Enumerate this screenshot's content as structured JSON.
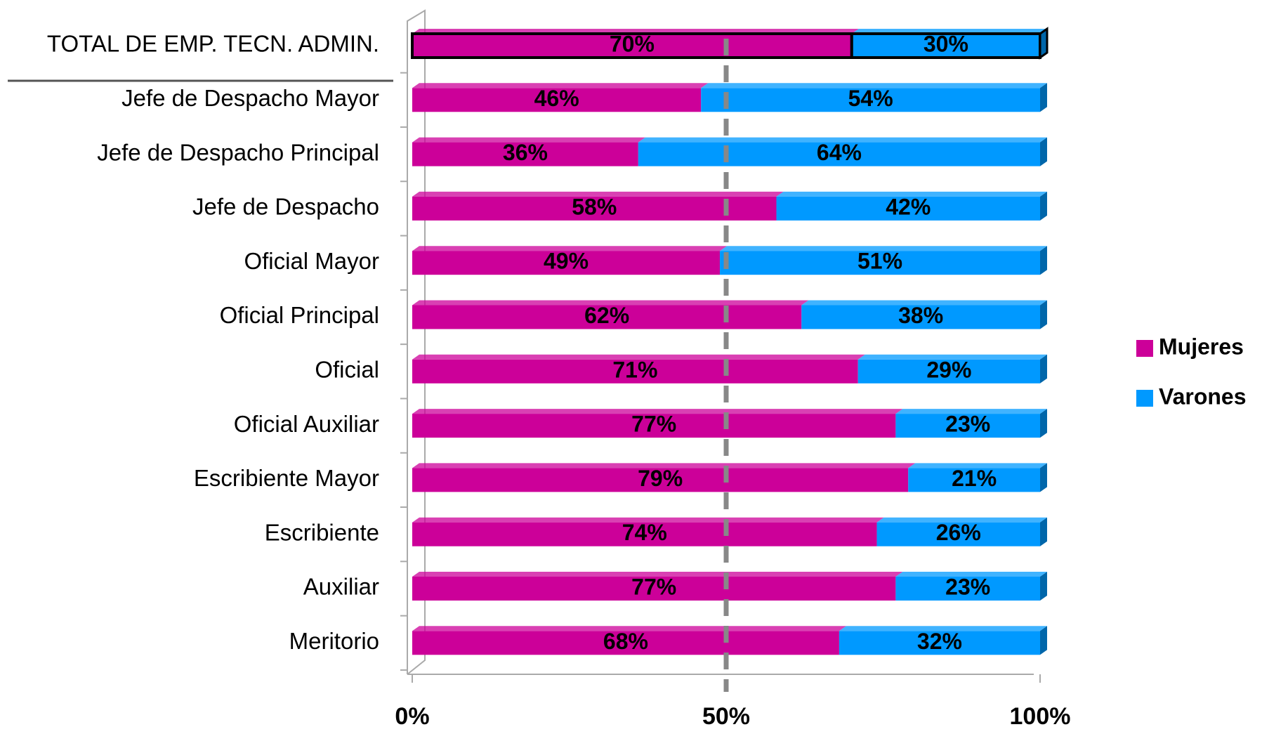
{
  "chart_data": {
    "type": "bar",
    "orientation": "horizontal",
    "stacked": "percent",
    "categories": [
      "TOTAL DE EMP. TECN. ADMIN.",
      "Jefe de Despacho Mayor",
      "Jefe de Despacho Principal",
      "Jefe de Despacho",
      "Oficial Mayor",
      "Oficial Principal",
      "Oficial",
      "Oficial Auxiliar",
      "Escribiente Mayor",
      "Escribiente",
      "Auxiliar",
      "Meritorio"
    ],
    "series": [
      {
        "name": "Mujeres",
        "color": "#cc0099",
        "values": [
          70,
          46,
          36,
          58,
          49,
          62,
          71,
          77,
          79,
          74,
          77,
          68
        ],
        "value_labels": [
          "70%",
          "46%",
          "36%",
          "58%",
          "49%",
          "62%",
          "71%",
          "77%",
          "79%",
          "74%",
          "77%",
          "68%"
        ]
      },
      {
        "name": "Varones",
        "color": "#0099ff",
        "values": [
          30,
          54,
          64,
          42,
          51,
          38,
          29,
          23,
          21,
          26,
          23,
          32
        ],
        "value_labels": [
          "30%",
          "54%",
          "64%",
          "42%",
          "51%",
          "38%",
          "29%",
          "23%",
          "21%",
          "26%",
          "23%",
          "32%"
        ]
      }
    ],
    "xlim": [
      0,
      100
    ],
    "xticks": [
      {
        "value": 0,
        "label": "0%"
      },
      {
        "value": 50,
        "label": "50%"
      },
      {
        "value": 100,
        "label": "100%"
      }
    ],
    "legend": "right"
  }
}
